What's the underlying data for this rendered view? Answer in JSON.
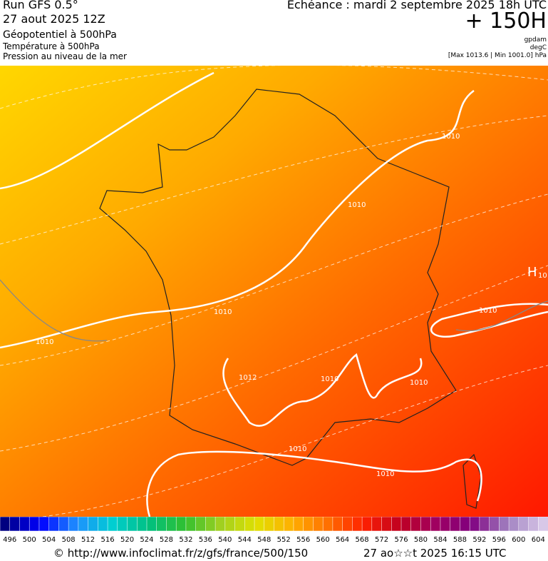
{
  "header": {
    "run": "Run GFS 0.5°",
    "date": "27 aout 2025 12Z",
    "field1": "Géopotentiel à 500hPa",
    "field2": "Température à 500hPa",
    "field3": "Pression au niveau de la mer",
    "echeance": "Echéance : mardi 2 septembre 2025 18h UTC",
    "lead": "+ 150H",
    "unit1": "gpdam",
    "unit2": "degC",
    "range": "[Max 1013.6 | Min 1001.0] hPa"
  },
  "map": {
    "isobar_labels": [
      "1010",
      "1010",
      "1010",
      "1010",
      "1010",
      "1012",
      "1010",
      "1010",
      "1010",
      "1010"
    ],
    "high": "H",
    "high_value": "10"
  },
  "colorbar": {
    "ticks": [
      496,
      500,
      504,
      508,
      512,
      516,
      520,
      524,
      528,
      532,
      536,
      540,
      544,
      548,
      552,
      556,
      560,
      564,
      568,
      572,
      576,
      580,
      584,
      588,
      592,
      596,
      600,
      604
    ],
    "colors": [
      "#000080",
      "#0000ff",
      "#1e90ff",
      "#00ced1",
      "#00c080",
      "#30c030",
      "#a0d020",
      "#e0e000",
      "#ffb000",
      "#ff7000",
      "#ff2000",
      "#c00020",
      "#a00060",
      "#800080",
      "#a080c0",
      "#d8c8e8"
    ]
  },
  "footer": {
    "url": "© http://www.infoclimat.fr/z/gfs/france/500/150",
    "timestamp": "27 ao☆☆t 2025 16:15 UTC"
  }
}
